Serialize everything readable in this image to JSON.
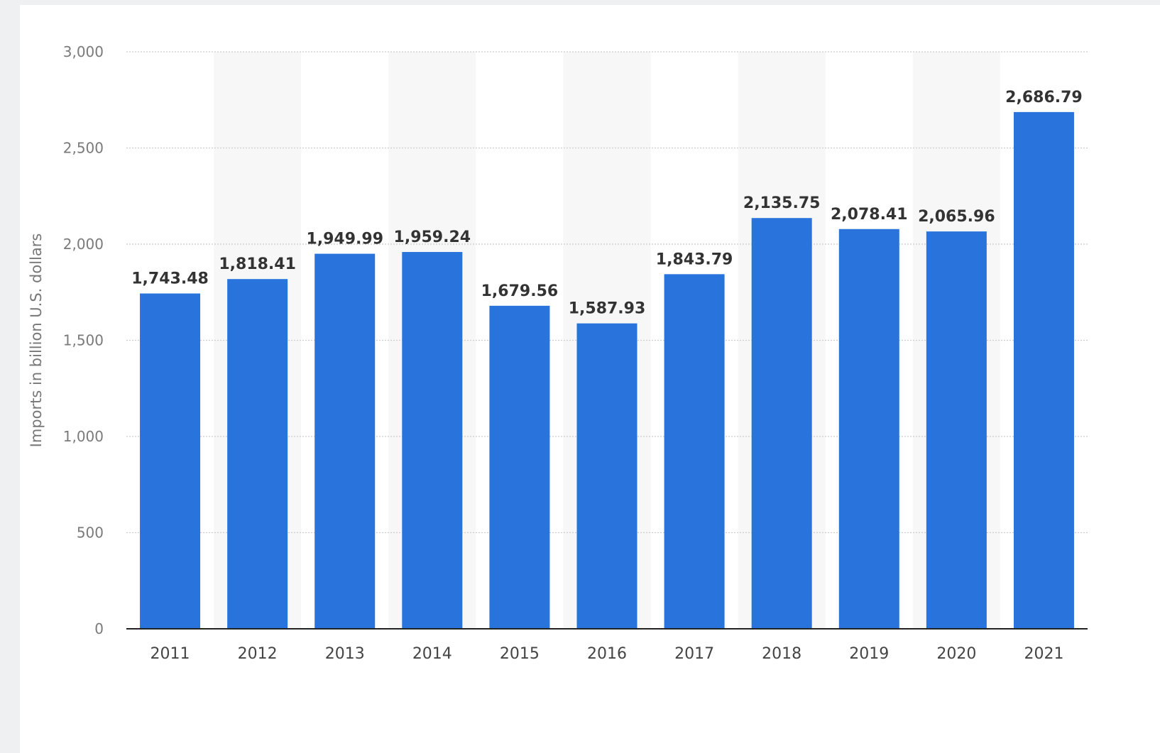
{
  "chart_data": {
    "type": "bar",
    "categories": [
      "2011",
      "2012",
      "2013",
      "2014",
      "2015",
      "2016",
      "2017",
      "2018",
      "2019",
      "2020",
      "2021"
    ],
    "values": [
      1743.48,
      1818.41,
      1949.99,
      1959.24,
      1679.56,
      1587.93,
      1843.79,
      2135.75,
      2078.41,
      2065.96,
      2686.79
    ],
    "value_labels": [
      "1,743.48",
      "1,818.41",
      "1,949.99",
      "1,959.24",
      "1,679.56",
      "1,587.93",
      "1,843.79",
      "2,135.75",
      "2,078.41",
      "2,065.96",
      "2,686.79"
    ],
    "ylabel": "Imports in billion U.S. dollars",
    "ylim": [
      0,
      3000
    ],
    "yticks": [
      0,
      500,
      1000,
      1500,
      2000,
      2500,
      3000
    ],
    "ytick_labels": [
      "0",
      "500",
      "1,000",
      "1,500",
      "2,000",
      "2,500",
      "3,000"
    ],
    "grid": "horizontal dotted",
    "alternating_column_shading": true,
    "colors": {
      "bar": "#2874dc",
      "grid": "#cccccc",
      "shade": "#f7f7f7",
      "axis": "#222222"
    }
  }
}
